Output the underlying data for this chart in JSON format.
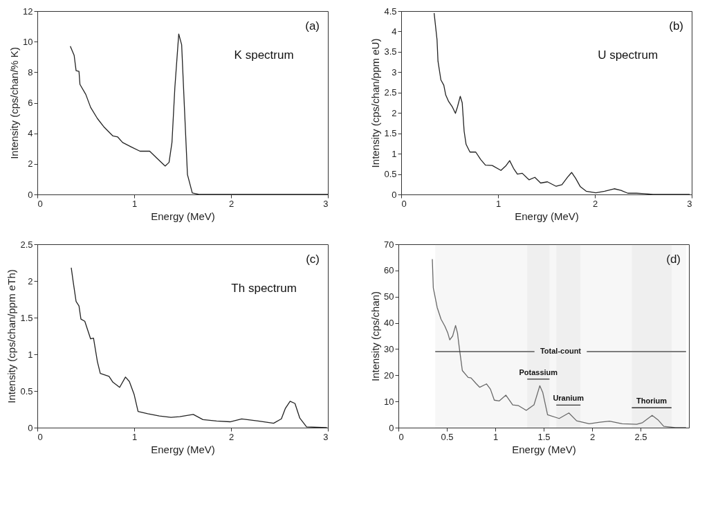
{
  "chart_data": [
    {
      "type": "line",
      "annotations": [
        "(a)",
        "K spectrum"
      ],
      "xlabel": "Energy (MeV)",
      "ylabel": "Intensity (cps/chan/% K)",
      "color": "#222222",
      "xlim": [
        0,
        3
      ],
      "ylim": [
        0,
        12
      ],
      "xticks": [
        0,
        1,
        2,
        3
      ],
      "yticks": [
        0,
        2,
        4,
        6,
        8,
        10,
        12
      ],
      "x": [
        0.34,
        0.38,
        0.4,
        0.43,
        0.44,
        0.5,
        0.55,
        0.62,
        0.69,
        0.78,
        0.83,
        0.88,
        0.97,
        1.06,
        1.16,
        1.23,
        1.32,
        1.36,
        1.39,
        1.42,
        1.46,
        1.49,
        1.52,
        1.55,
        1.6,
        1.67,
        2.0,
        2.5,
        3.0
      ],
      "values": [
        9.7,
        9.1,
        8.1,
        8.05,
        7.2,
        6.55,
        5.7,
        4.97,
        4.4,
        3.83,
        3.76,
        3.4,
        3.11,
        2.83,
        2.83,
        2.4,
        1.86,
        2.1,
        3.4,
        7.0,
        10.5,
        9.8,
        5.5,
        1.3,
        0.1,
        0,
        0,
        0,
        0
      ]
    },
    {
      "type": "line",
      "annotations": [
        "(b)",
        "U spectrum"
      ],
      "xlabel": "Energy (MeV)",
      "ylabel": "Intensity (cps/chan/ppm eU)",
      "color": "#222222",
      "xlim": [
        0,
        3
      ],
      "ylim": [
        0,
        4.5
      ],
      "xticks": [
        0,
        1,
        2,
        3
      ],
      "yticks": [
        0,
        0.5,
        1,
        1.5,
        2,
        2.5,
        3,
        3.5,
        4,
        4.5
      ],
      "x": [
        0.34,
        0.37,
        0.38,
        0.41,
        0.44,
        0.46,
        0.49,
        0.53,
        0.56,
        0.58,
        0.61,
        0.63,
        0.65,
        0.67,
        0.71,
        0.77,
        0.82,
        0.87,
        0.94,
        1.03,
        1.08,
        1.12,
        1.16,
        1.2,
        1.25,
        1.32,
        1.38,
        1.44,
        1.51,
        1.6,
        1.66,
        1.72,
        1.76,
        1.8,
        1.85,
        1.91,
        2.01,
        2.1,
        2.2,
        2.27,
        2.34,
        2.43,
        2.51,
        2.6,
        2.98
      ],
      "values": [
        4.45,
        3.8,
        3.27,
        2.81,
        2.68,
        2.44,
        2.28,
        2.14,
        1.99,
        2.14,
        2.41,
        2.25,
        1.55,
        1.23,
        1.04,
        1.04,
        0.86,
        0.72,
        0.71,
        0.59,
        0.7,
        0.83,
        0.64,
        0.5,
        0.52,
        0.36,
        0.42,
        0.28,
        0.31,
        0.2,
        0.24,
        0.43,
        0.54,
        0.4,
        0.19,
        0.08,
        0.04,
        0.08,
        0.14,
        0.1,
        0.03,
        0.03,
        0.02,
        0,
        0
      ]
    },
    {
      "type": "line",
      "annotations": [
        "(c)",
        "Th spectrum"
      ],
      "xlabel": "Energy (MeV)",
      "ylabel": "Intensity (cps/chan/ppm eTh)",
      "color": "#222222",
      "xlim": [
        0,
        3
      ],
      "ylim": [
        0,
        2.5
      ],
      "xticks": [
        0,
        1,
        2,
        3
      ],
      "yticks": [
        0,
        0.5,
        1,
        1.5,
        2,
        2.5
      ],
      "x": [
        0.35,
        0.37,
        0.4,
        0.43,
        0.45,
        0.49,
        0.52,
        0.55,
        0.58,
        0.62,
        0.65,
        0.74,
        0.78,
        0.85,
        0.91,
        0.95,
        1.0,
        1.04,
        1.14,
        1.26,
        1.38,
        1.47,
        1.61,
        1.71,
        1.85,
        1.99,
        2.11,
        2.28,
        2.44,
        2.52,
        2.56,
        2.61,
        2.66,
        2.71,
        2.78,
        2.99
      ],
      "values": [
        2.18,
        1.99,
        1.72,
        1.66,
        1.48,
        1.45,
        1.33,
        1.21,
        1.22,
        0.9,
        0.74,
        0.7,
        0.62,
        0.55,
        0.69,
        0.63,
        0.45,
        0.22,
        0.19,
        0.16,
        0.14,
        0.15,
        0.18,
        0.11,
        0.09,
        0.08,
        0.12,
        0.09,
        0.06,
        0.12,
        0.26,
        0.36,
        0.33,
        0.13,
        0.01,
        0
      ]
    },
    {
      "type": "line",
      "annotations": [
        "(d)"
      ],
      "xlabel": "Energy (MeV)",
      "ylabel": "Intensity (cps/chan)",
      "color": "#666666",
      "xlim": [
        0,
        3
      ],
      "ylim": [
        0,
        70
      ],
      "xticks": [
        0,
        0.5,
        1,
        1.5,
        2,
        2.5
      ],
      "yticks": [
        0,
        10,
        20,
        30,
        40,
        50,
        60,
        70
      ],
      "bands": [
        {
          "axis": "x",
          "from": 0.38,
          "to": 2.97,
          "label": "Total-count"
        },
        {
          "axis": "x",
          "from": 1.33,
          "to": 1.56,
          "label": "Potassium"
        },
        {
          "axis": "x",
          "from": 1.63,
          "to": 1.88,
          "label": "Uranium"
        },
        {
          "axis": "x",
          "from": 2.41,
          "to": 2.82,
          "label": "Thorium"
        }
      ],
      "x": [
        0.35,
        0.36,
        0.4,
        0.44,
        0.48,
        0.51,
        0.53,
        0.56,
        0.59,
        0.61,
        0.63,
        0.66,
        0.72,
        0.75,
        0.8,
        0.84,
        0.91,
        0.95,
        0.99,
        1.04,
        1.11,
        1.18,
        1.24,
        1.32,
        1.4,
        1.46,
        1.49,
        1.54,
        1.66,
        1.76,
        1.84,
        1.97,
        2.08,
        2.18,
        2.31,
        2.46,
        2.52,
        2.62,
        2.68,
        2.74,
        2.86,
        2.97
      ],
      "values": [
        64.3,
        53.4,
        45.9,
        41.4,
        38.7,
        36.1,
        33.5,
        35,
        39,
        36.1,
        30.1,
        21.8,
        19.2,
        19,
        16.9,
        15.4,
        16.7,
        14.7,
        10.5,
        10.2,
        12.4,
        8.7,
        8.4,
        6.6,
        8.7,
        16,
        13.5,
        4.9,
        3.5,
        5.6,
        2.6,
        1.5,
        2.1,
        2.5,
        1.5,
        1.3,
        1.9,
        4.7,
        3,
        0.5,
        0,
        0
      ]
    }
  ]
}
